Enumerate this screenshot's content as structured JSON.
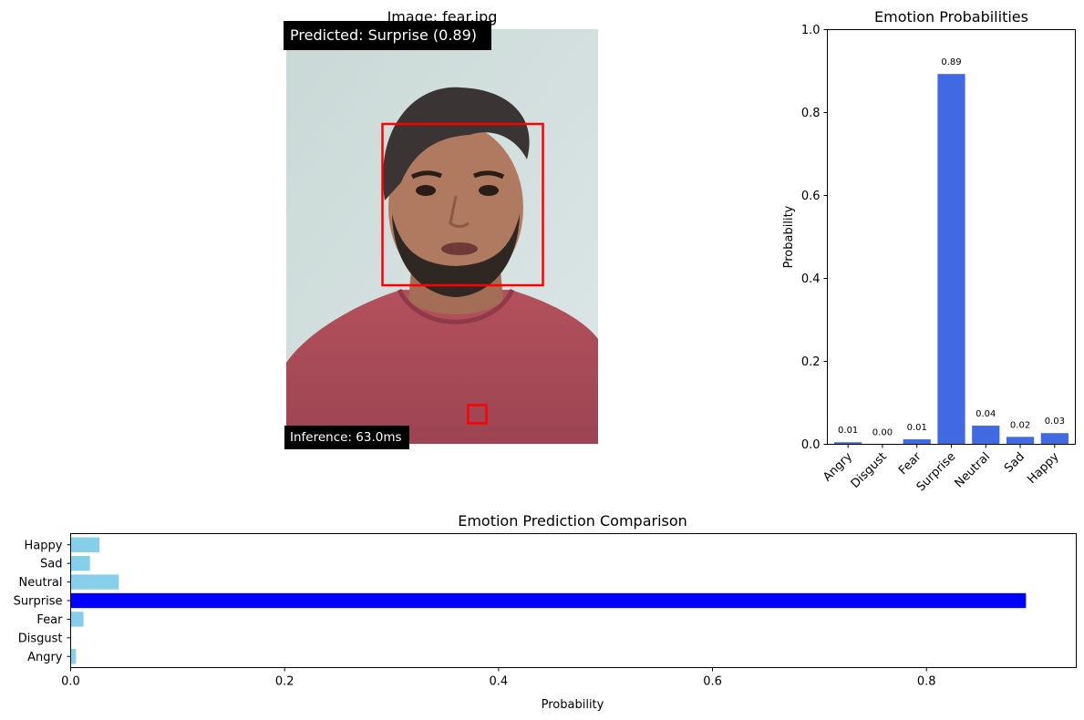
{
  "image_panel": {
    "title": "Image: fear.jpg",
    "predicted_label": "Predicted: Surprise (0.89)",
    "inference_label": "Inference: 63.0ms"
  },
  "colors": {
    "bar_primary": "#4169e1",
    "bar_light": "#87ceeb",
    "bar_highlight": "#0000ff",
    "box": "#ff0000",
    "label_bg": "#000000",
    "label_fg": "#ffffff"
  },
  "chart_data": [
    {
      "type": "bar",
      "title": "Emotion Probabilities",
      "xlabel": "",
      "ylabel": "Probability",
      "ylim": [
        0,
        1.0
      ],
      "yticks": [
        "0.0",
        "0.2",
        "0.4",
        "0.6",
        "0.8",
        "1.0"
      ],
      "categories": [
        "Angry",
        "Disgust",
        "Fear",
        "Surprise",
        "Neutral",
        "Sad",
        "Happy"
      ],
      "values": [
        0.005,
        0.0,
        0.012,
        0.893,
        0.045,
        0.018,
        0.027
      ],
      "data_labels": [
        "0.01",
        "0.00",
        "0.01",
        "0.89",
        "0.04",
        "0.02",
        "0.03"
      ],
      "color": "#4169e1",
      "grid": false
    },
    {
      "type": "bar",
      "orientation": "horizontal",
      "title": "Emotion Prediction Comparison",
      "xlabel": "Probability",
      "ylabel": "",
      "xlim": [
        0,
        0.94
      ],
      "xticks": [
        "0.0",
        "0.2",
        "0.4",
        "0.6",
        "0.8"
      ],
      "categories": [
        "Angry",
        "Disgust",
        "Fear",
        "Surprise",
        "Neutral",
        "Sad",
        "Happy"
      ],
      "values": [
        0.005,
        0.0,
        0.012,
        0.893,
        0.045,
        0.018,
        0.027
      ],
      "highlight": "Surprise",
      "grid": false
    }
  ]
}
